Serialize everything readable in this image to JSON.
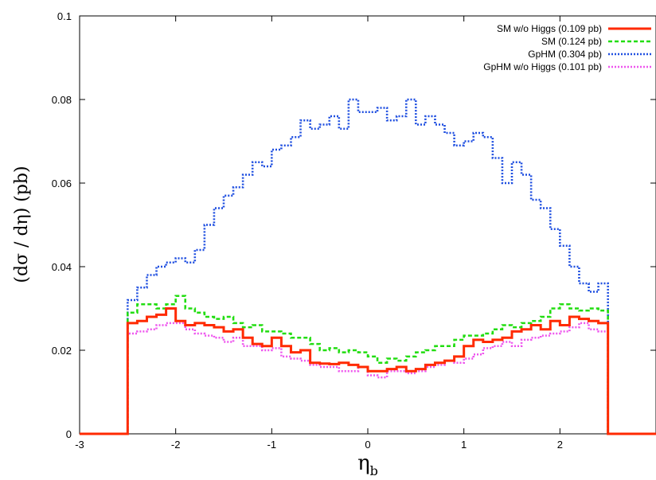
{
  "chart_data": {
    "type": "line",
    "style": "step",
    "xlabel": "η",
    "xlabel_sub": "b",
    "ylabel": "(dσ / dη) (pb)",
    "xlim": [
      -3,
      3
    ],
    "ylim": [
      0,
      0.1
    ],
    "x_ticks": [
      -3,
      -2,
      -1,
      0,
      1,
      2
    ],
    "y_ticks": [
      0,
      0.02,
      0.04,
      0.06,
      0.08,
      0.1
    ],
    "x_tick_labels": [
      "-3",
      "-2",
      "-1",
      "0",
      "1",
      "2"
    ],
    "y_tick_labels": [
      "0",
      "0.02",
      "0.04",
      "0.06",
      "0.08",
      "0.1"
    ],
    "grid": false,
    "legend_position": "top-right",
    "bin_edges": [
      -2.5,
      -2.4,
      -2.3,
      -2.2,
      -2.1,
      -2.0,
      -1.9,
      -1.8,
      -1.7,
      -1.6,
      -1.5,
      -1.4,
      -1.3,
      -1.2,
      -1.1,
      -1.0,
      -0.9,
      -0.8,
      -0.7,
      -0.6,
      -0.5,
      -0.4,
      -0.3,
      -0.2,
      -0.1,
      0.0,
      0.1,
      0.2,
      0.3,
      0.4,
      0.5,
      0.6,
      0.7,
      0.8,
      0.9,
      1.0,
      1.1,
      1.2,
      1.3,
      1.4,
      1.5,
      1.6,
      1.7,
      1.8,
      1.9,
      2.0,
      2.1,
      2.2,
      2.3,
      2.4,
      2.5
    ],
    "series": [
      {
        "name": "SM w/o Higgs (0.109 pb)",
        "color": "#ff2a00",
        "dash": "solid",
        "values": [
          0.0265,
          0.027,
          0.028,
          0.0285,
          0.03,
          0.027,
          0.026,
          0.0265,
          0.026,
          0.0255,
          0.0245,
          0.025,
          0.023,
          0.0215,
          0.021,
          0.023,
          0.021,
          0.0195,
          0.02,
          0.017,
          0.0168,
          0.0167,
          0.017,
          0.0165,
          0.016,
          0.015,
          0.015,
          0.0155,
          0.016,
          0.015,
          0.0155,
          0.0165,
          0.017,
          0.0175,
          0.0185,
          0.021,
          0.0225,
          0.022,
          0.0225,
          0.023,
          0.0245,
          0.025,
          0.026,
          0.025,
          0.027,
          0.026,
          0.028,
          0.0275,
          0.027,
          0.0265
        ]
      },
      {
        "name": "SM (0.124 pb)",
        "color": "#22dd11",
        "dash": "dashed",
        "values": [
          0.029,
          0.031,
          0.031,
          0.03,
          0.031,
          0.033,
          0.03,
          0.029,
          0.028,
          0.0275,
          0.028,
          0.0265,
          0.0255,
          0.026,
          0.0245,
          0.0245,
          0.024,
          0.023,
          0.023,
          0.0215,
          0.02,
          0.0205,
          0.0195,
          0.02,
          0.0195,
          0.0185,
          0.017,
          0.018,
          0.0175,
          0.0185,
          0.0195,
          0.02,
          0.021,
          0.021,
          0.0225,
          0.0235,
          0.0235,
          0.024,
          0.025,
          0.026,
          0.0255,
          0.0265,
          0.027,
          0.028,
          0.03,
          0.031,
          0.03,
          0.0295,
          0.03,
          0.0295
        ]
      },
      {
        "name": "GpHM (0.304 pb)",
        "color": "#1f4fe0",
        "dash": "dotted",
        "values": [
          0.032,
          0.035,
          0.038,
          0.04,
          0.041,
          0.042,
          0.041,
          0.044,
          0.05,
          0.054,
          0.057,
          0.059,
          0.062,
          0.065,
          0.064,
          0.068,
          0.069,
          0.071,
          0.075,
          0.073,
          0.074,
          0.076,
          0.073,
          0.08,
          0.077,
          0.077,
          0.078,
          0.075,
          0.076,
          0.08,
          0.074,
          0.076,
          0.074,
          0.072,
          0.069,
          0.07,
          0.072,
          0.071,
          0.066,
          0.06,
          0.065,
          0.062,
          0.056,
          0.054,
          0.049,
          0.045,
          0.04,
          0.036,
          0.034,
          0.036
        ]
      },
      {
        "name": "GpHM w/o Higgs (0.101 pb)",
        "color": "#ee55ee",
        "dash": "dotted",
        "values": [
          0.024,
          0.0245,
          0.025,
          0.026,
          0.0265,
          0.0265,
          0.025,
          0.024,
          0.0235,
          0.023,
          0.022,
          0.023,
          0.021,
          0.021,
          0.02,
          0.0205,
          0.0185,
          0.018,
          0.0175,
          0.0165,
          0.016,
          0.016,
          0.015,
          0.015,
          0.016,
          0.014,
          0.0135,
          0.015,
          0.015,
          0.0145,
          0.015,
          0.016,
          0.0165,
          0.0175,
          0.017,
          0.018,
          0.019,
          0.0205,
          0.021,
          0.022,
          0.021,
          0.0225,
          0.023,
          0.0235,
          0.024,
          0.0245,
          0.0255,
          0.0265,
          0.025,
          0.0245
        ]
      }
    ]
  }
}
